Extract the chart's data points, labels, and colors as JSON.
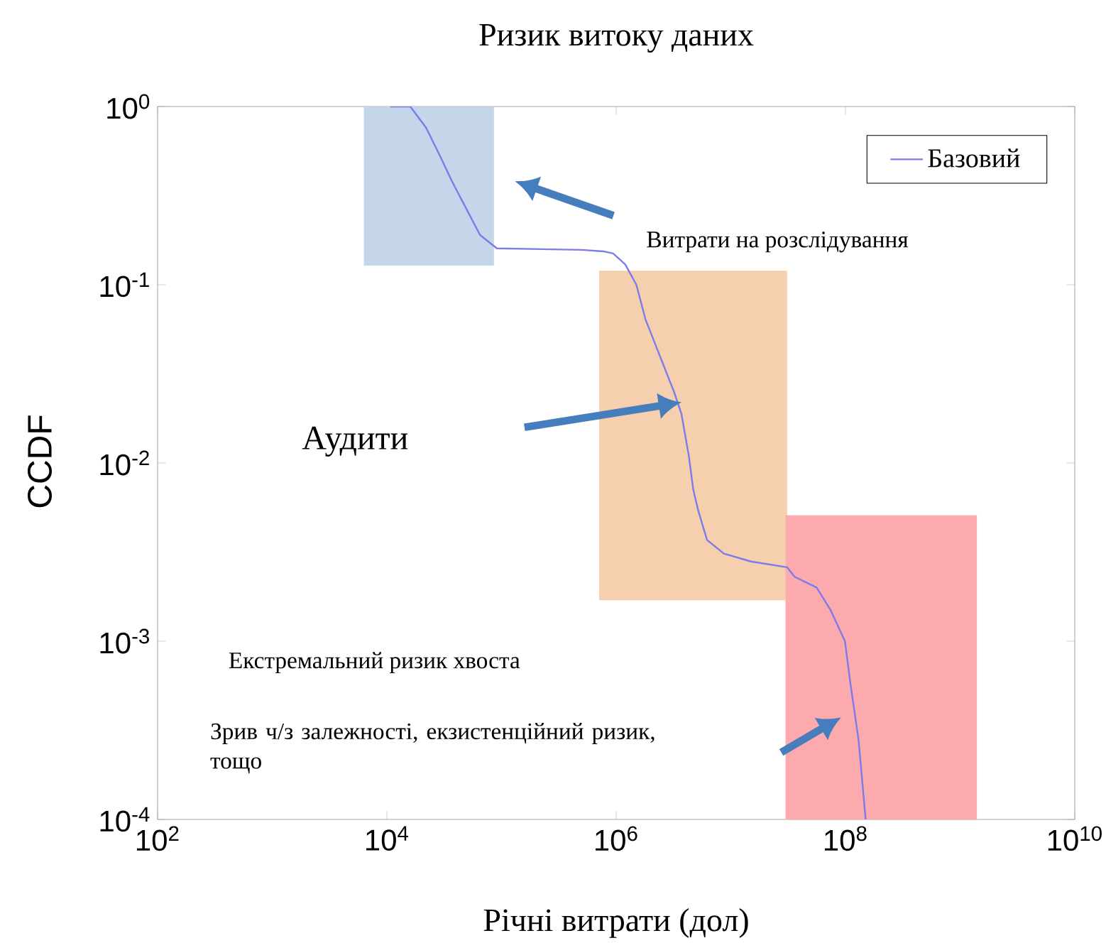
{
  "chart_data": {
    "type": "line",
    "title": "Ризик витоку даних",
    "xlabel": "Річні витрати (дол)",
    "ylabel": "CCDF",
    "log": "xy",
    "legend": "top right",
    "xlim": [
      100,
      10000000000
    ],
    "ylim": [
      0.0001,
      1
    ],
    "xticks": [
      {
        "value": 100,
        "label": "10$^{2}$"
      },
      {
        "value": 10000,
        "label": "10$^{4}$"
      },
      {
        "value": 1000000,
        "label": "10$^{6}$"
      },
      {
        "value": 100000000,
        "label": "10$^{8}$"
      },
      {
        "value": 10000000000,
        "label": "10$^{10}$"
      }
    ],
    "yticks": [
      {
        "value": 0.0001,
        "label": "10$^{-4}$"
      },
      {
        "value": 0.001,
        "label": "10$^{-3}$"
      },
      {
        "value": 0.01,
        "label": "10$^{-2}$"
      },
      {
        "value": 0.1,
        "label": "10$^{-1}$"
      },
      {
        "value": 1,
        "label": "10$^{0}$"
      }
    ],
    "annotations": [
      "Витрати на розслідування",
      "Аудити",
      "Екстремальний ризик хвоста",
      "Зрив ч/з залежності, екзистенційний ризик, тощо"
    ],
    "series": [
      {
        "type": "area",
        "color": "#c5d5ea",
        "x": [
          6300,
          6300,
          86000,
          86000
        ],
        "values": [
          0.128,
          1,
          1,
          0.128
        ]
      },
      {
        "type": "area",
        "color": "#f6cfae",
        "x": [
          710000,
          710000,
          31000000,
          31000000
        ],
        "values": [
          0.0017,
          0.12,
          0.12,
          0.0017
        ]
      },
      {
        "type": "area",
        "color": "#fdaaae",
        "x": [
          30000000,
          30000000,
          1400000000,
          1400000000
        ],
        "values": [
          0.0001,
          0.0051,
          0.0051,
          0.0001
        ]
      },
      {
        "type": "line",
        "name": "Базовий",
        "color": "#7b7bea",
        "x": [
          10700,
          16000,
          22000,
          29000,
          37000,
          52000,
          65000,
          91000,
          500000,
          770000,
          940000,
          1200000,
          1500000,
          1800000,
          2400000,
          3200000,
          3700000,
          4300000,
          4700000,
          5200000,
          6200000,
          8700000,
          15000000,
          31000000,
          36000000,
          56000000,
          74000000,
          99000000,
          110000000,
          130000000,
          150000000
        ],
        "values": [
          1,
          1,
          0.76,
          0.53,
          0.38,
          0.25,
          0.19,
          0.16,
          0.157,
          0.154,
          0.15,
          0.13,
          0.1,
          0.064,
          0.04,
          0.025,
          0.019,
          0.011,
          0.0071,
          0.0054,
          0.0037,
          0.0031,
          0.0028,
          0.0026,
          0.0023,
          0.002,
          0.0015,
          0.001,
          0.00059,
          0.00028,
          0.0001
        ]
      }
    ]
  }
}
